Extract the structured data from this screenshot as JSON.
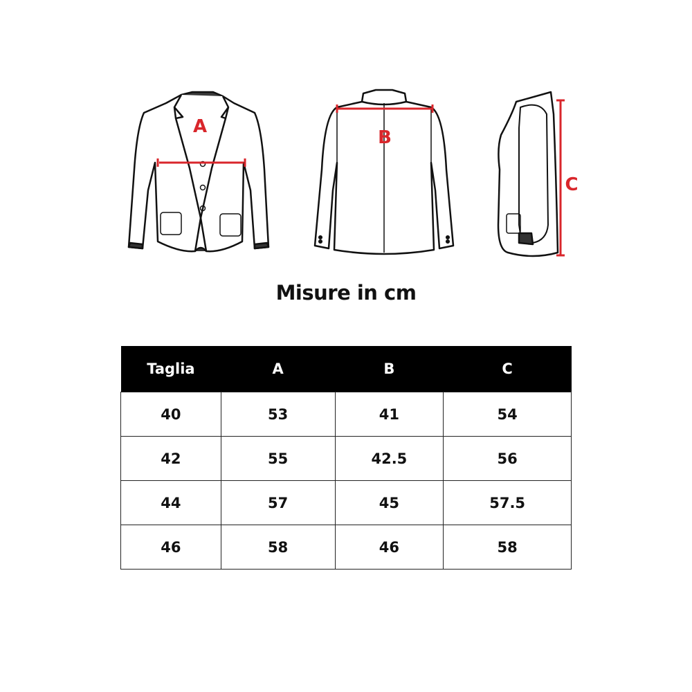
{
  "figures": {
    "front_label": "A",
    "back_label": "B",
    "side_label": "C",
    "measure_color": "#d9262b"
  },
  "title": "Misure in cm",
  "table": {
    "headers": [
      "Taglia",
      "A",
      "B",
      "C"
    ],
    "rows": [
      [
        "40",
        "53",
        "41",
        "54"
      ],
      [
        "42",
        "55",
        "42.5",
        "56"
      ],
      [
        "44",
        "57",
        "45",
        "57.5"
      ],
      [
        "46",
        "58",
        "46",
        "58"
      ]
    ]
  }
}
